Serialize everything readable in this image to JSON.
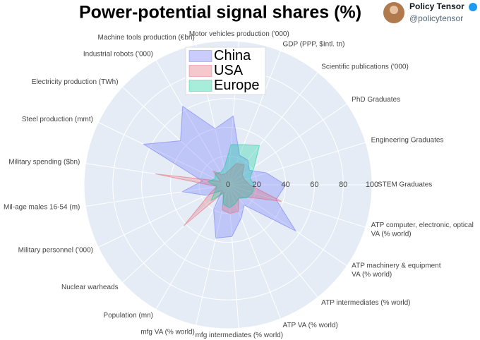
{
  "header": {
    "name": "Policy Tensor",
    "handle": "@policytensor"
  },
  "chart_data": {
    "type": "radar",
    "title": "Power-potential signal shares (%)",
    "categories": [
      "STEM Graduates",
      "Engineering Graduates",
      "PhD Graduates",
      "Scientific publications ('000)",
      "GDP (PPP, $Intl. tn)",
      "Motor vehicles production ('000)",
      "Machine tools production (€bn)",
      "Industrial robots ('000)",
      "Electricity production (TWh)",
      "Steel production (mmt)",
      "Military spending ($bn)",
      "Mil-age males 16-54 (m)",
      "Military personnel ('000)",
      "Nuclear warheads",
      "Population (mn)",
      "mfg VA (% world)",
      "mfg intermediates (% world)",
      "ATP VA (% world)",
      "ATP intermediates (% world)",
      "ATP machinery & equipment VA (% world)",
      "ATP computer, electronic, optical VA (% world)"
    ],
    "series": [
      {
        "name": "China",
        "color": "#636efa",
        "values": [
          40,
          28,
          18,
          22,
          22,
          48,
          40,
          63,
          45,
          65,
          18,
          32,
          17,
          6,
          20,
          38,
          36,
          25,
          18,
          57,
          35
        ]
      },
      {
        "name": "USA",
        "color": "#e0606e",
        "values": [
          15,
          12,
          12,
          18,
          16,
          10,
          8,
          8,
          14,
          6,
          51,
          8,
          14,
          42,
          6,
          18,
          20,
          20,
          12,
          15,
          39
        ]
      },
      {
        "name": "Europe",
        "color": "#00cc96",
        "values": [
          18,
          16,
          22,
          35,
          30,
          28,
          12,
          10,
          12,
          10,
          14,
          8,
          10,
          16,
          7,
          14,
          16,
          14,
          12,
          16,
          18
        ]
      }
    ],
    "rlim": [
      0,
      100
    ],
    "rticks": [
      0,
      20,
      40,
      60,
      80,
      100
    ],
    "grid": true,
    "legend": "top-left"
  }
}
